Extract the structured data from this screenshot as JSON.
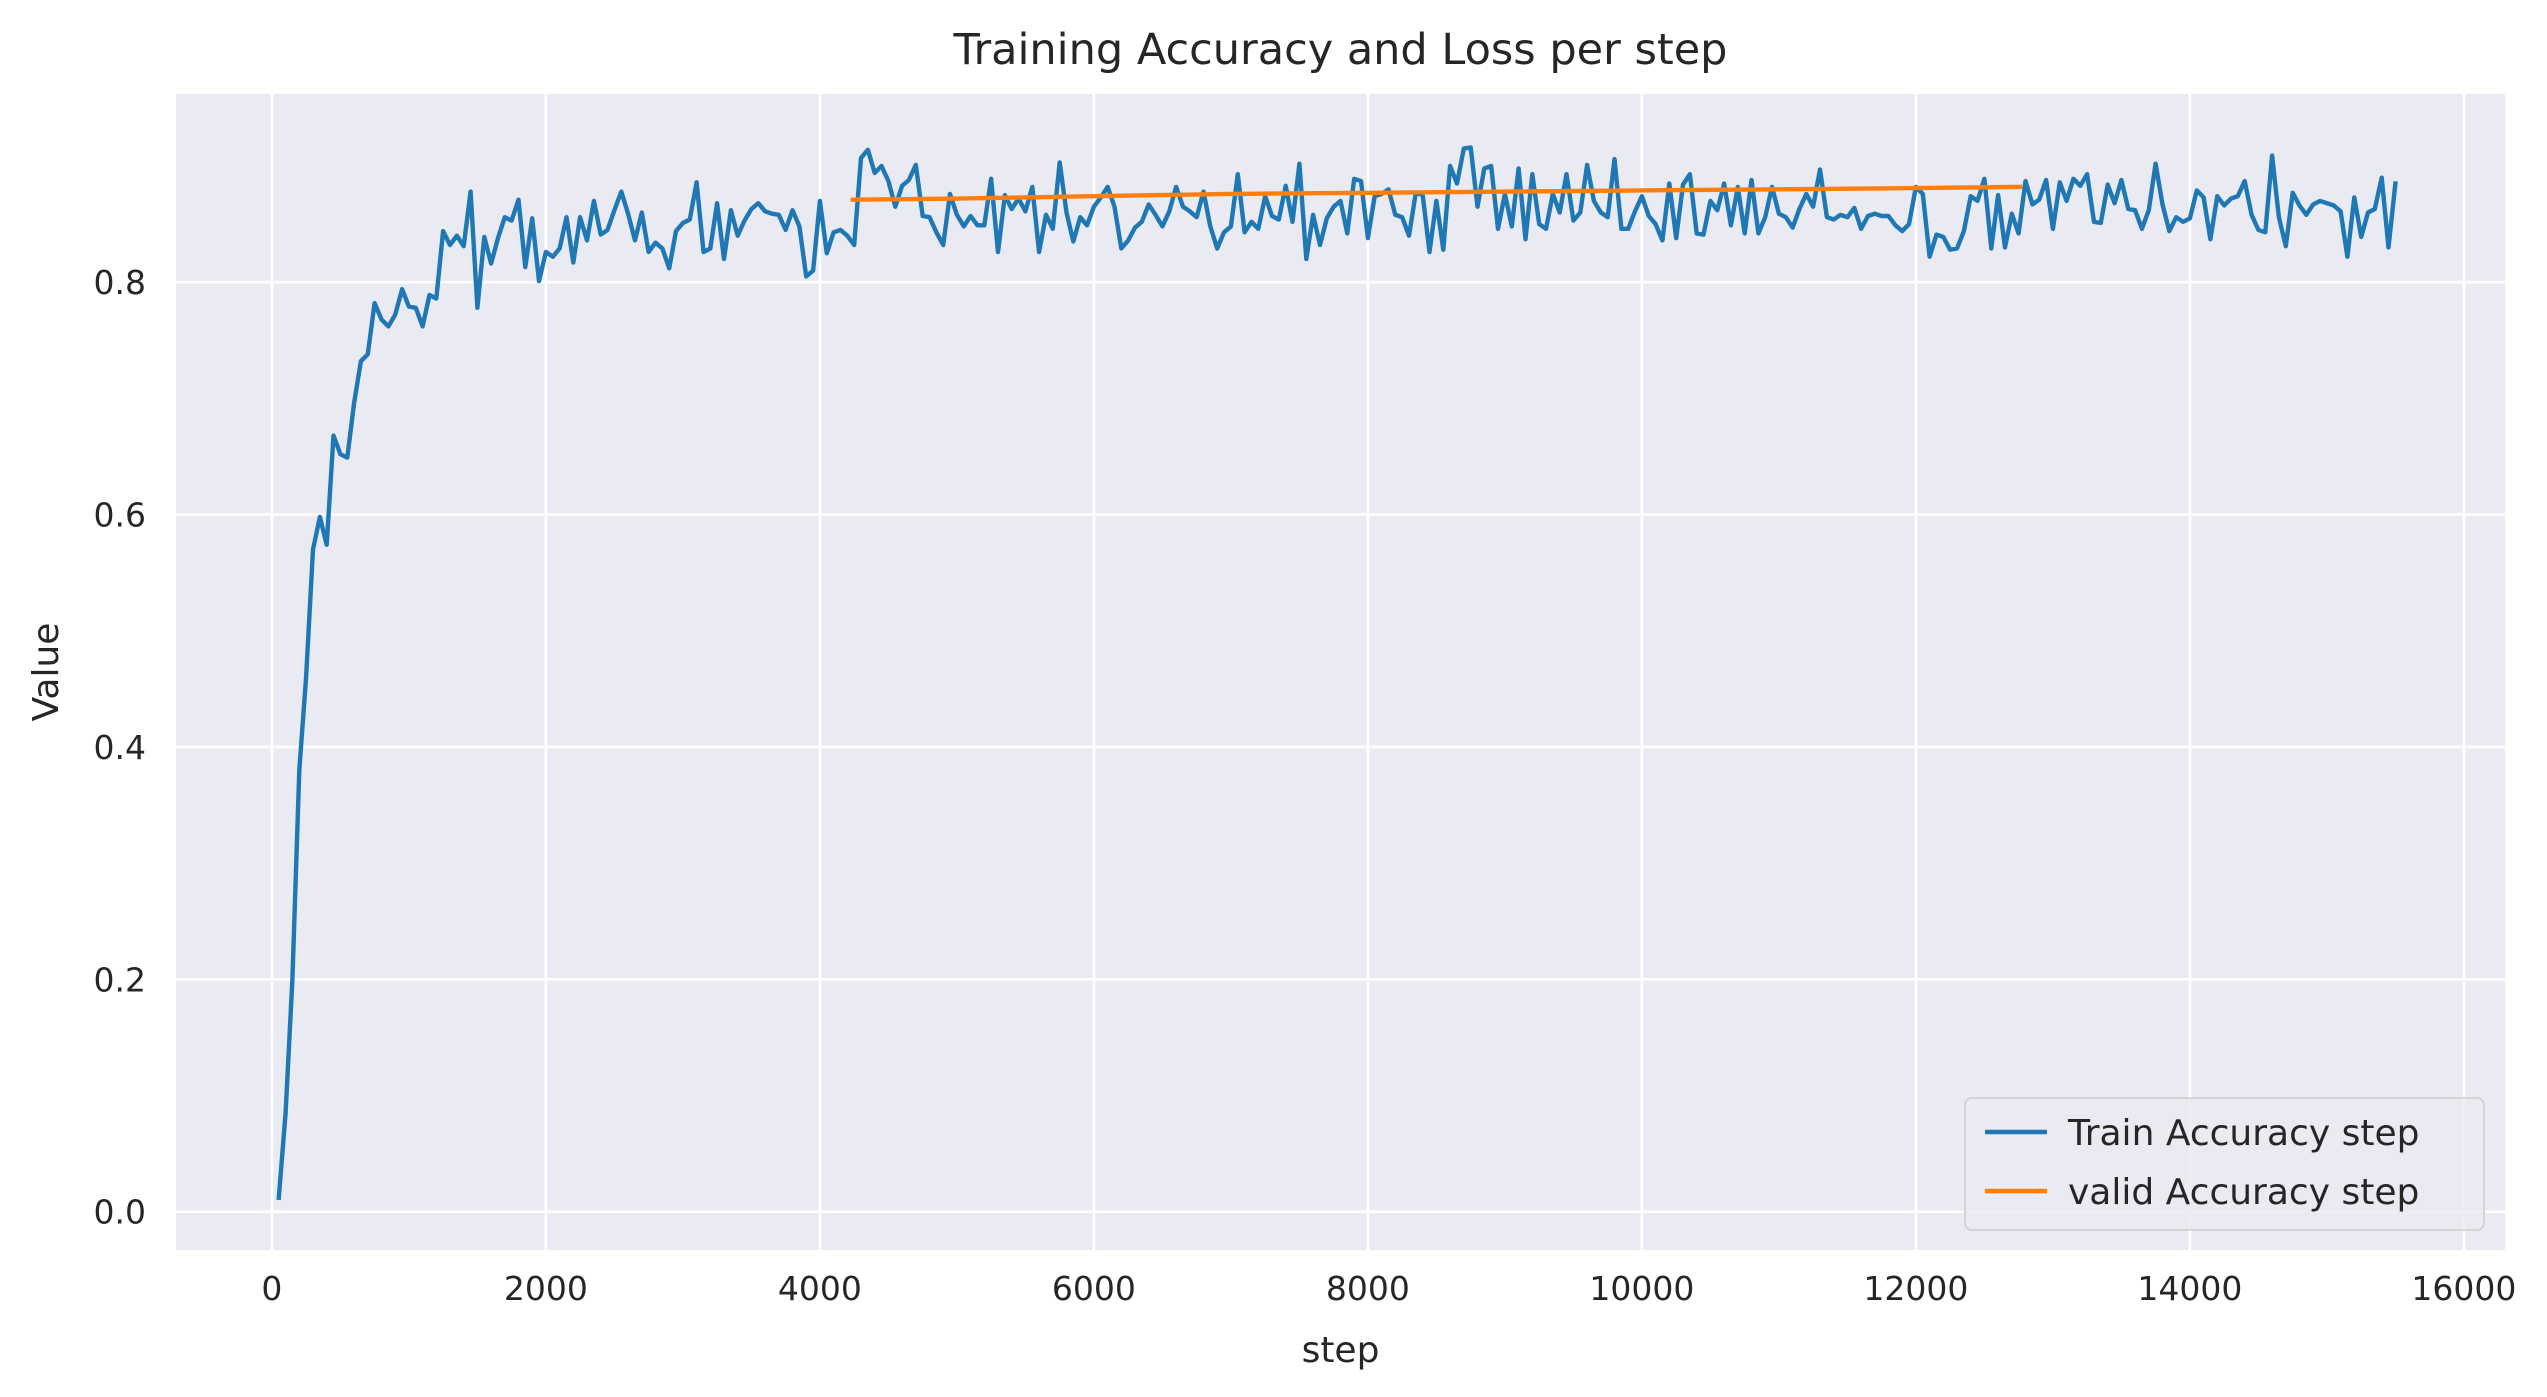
{
  "chart_data": {
    "type": "line",
    "title": "Training Accuracy and Loss per step",
    "xlabel": "step",
    "ylabel": "Value",
    "xlim": [
      -700,
      16300
    ],
    "ylim": [
      -0.033,
      0.962
    ],
    "xticks": [
      0,
      2000,
      4000,
      6000,
      8000,
      10000,
      12000,
      14000,
      16000
    ],
    "yticks": [
      0.0,
      0.2,
      0.4,
      0.6,
      0.8
    ],
    "xtick_labels": [
      "0",
      "2000",
      "4000",
      "6000",
      "8000",
      "10000",
      "12000",
      "14000",
      "16000"
    ],
    "ytick_labels": [
      "0.0",
      "0.2",
      "0.4",
      "0.6",
      "0.8"
    ],
    "grid": true,
    "background": "#eaeaf2",
    "gridColor": "#ffffff",
    "legend_position": "lower-right",
    "series": [
      {
        "name": "Train Accuracy step",
        "color": "#1f77b4",
        "x": [
          50,
          100,
          150,
          200,
          250,
          300,
          350,
          400,
          450,
          500,
          550,
          600,
          650,
          700,
          750,
          800,
          850,
          900,
          950,
          1000,
          1050,
          1100,
          1150,
          1200,
          1250,
          1300,
          1350,
          1400,
          1450,
          1500,
          1550,
          1600,
          1650,
          1700,
          1750,
          1800,
          1850,
          1900,
          1950,
          2000,
          2050,
          2100,
          2150,
          2200,
          2250,
          2300,
          2350,
          2400,
          2450,
          2500,
          2550,
          2600,
          2650,
          2700,
          2750,
          2800,
          2850,
          2900,
          2950,
          3000,
          3050,
          3100,
          3150,
          3200,
          3250,
          3300,
          3350,
          3400,
          3450,
          3500,
          3550,
          3600,
          3650,
          3700,
          3750,
          3800,
          3850,
          3900,
          3950,
          4000,
          4050,
          4100,
          4150,
          4200,
          4250,
          4300,
          4350,
          4400,
          4450,
          4500,
          4550,
          4600,
          4650,
          4700,
          4750,
          4800,
          4850,
          4900,
          4950,
          5000,
          5050,
          5100,
          5150,
          5200,
          5250,
          5300,
          5350,
          5400,
          5450,
          5500,
          5550,
          5600,
          5650,
          5700,
          5750,
          5800,
          5850,
          5900,
          5950,
          6000,
          6050,
          6100,
          6150,
          6200,
          6250,
          6300,
          6350,
          6400,
          6450,
          6500,
          6550,
          6600,
          6650,
          6700,
          6750,
          6800,
          6850,
          6900,
          6950,
          7000,
          7050,
          7100,
          7150,
          7200,
          7250,
          7300,
          7350,
          7400,
          7450,
          7500,
          7550,
          7600,
          7650,
          7700,
          7750,
          7800,
          7850,
          7900,
          7950,
          8000,
          8050,
          8100,
          8150,
          8200,
          8250,
          8300,
          8350,
          8400,
          8450,
          8500,
          8550,
          8600,
          8650,
          8700,
          8750,
          8800,
          8850,
          8900,
          8950,
          9000,
          9050,
          9100,
          9150,
          9200,
          9250,
          9300,
          9350,
          9400,
          9450,
          9500,
          9550,
          9600,
          9650,
          9700,
          9750,
          9800,
          9850,
          9900,
          9950,
          10000,
          10050,
          10100,
          10150,
          10200,
          10250,
          10300,
          10350,
          10400,
          10450,
          10500,
          10550,
          10600,
          10650,
          10700,
          10750,
          10800,
          10850,
          10900,
          10950,
          11000,
          11050,
          11100,
          11150,
          11200,
          11250,
          11300,
          11350,
          11400,
          11450,
          11500,
          11550,
          11600,
          11650,
          11700,
          11750,
          11800,
          11850,
          11900,
          11950,
          12000,
          12050,
          12100,
          12150,
          12200,
          12250,
          12300,
          12350,
          12400,
          12450,
          12500,
          12550,
          12600,
          12650,
          12700,
          12750,
          12800,
          12850,
          12900,
          12950,
          13000,
          13050,
          13100,
          13150,
          13200,
          13250,
          13300,
          13350,
          13400,
          13450,
          13500,
          13550,
          13600,
          13650,
          13700,
          13750,
          13800,
          13850,
          13900,
          13950,
          14000,
          14050,
          14100,
          14150,
          14200,
          14250,
          14300,
          14350,
          14400,
          14450,
          14500,
          14550,
          14600,
          14650,
          14700,
          14750,
          14800,
          14850,
          14900,
          14950,
          15000,
          15050,
          15100,
          15150,
          15200,
          15250,
          15300,
          15350,
          15400,
          15450,
          15500
        ],
        "values": [
          0.012,
          0.085,
          0.2,
          0.38,
          0.46,
          0.57,
          0.598,
          0.574,
          0.668,
          0.652,
          0.649,
          0.696,
          0.732,
          0.738,
          0.782,
          0.768,
          0.762,
          0.772,
          0.794,
          0.779,
          0.778,
          0.762,
          0.789,
          0.786,
          0.844,
          0.832,
          0.84,
          0.831,
          0.878,
          0.778,
          0.839,
          0.816,
          0.838,
          0.856,
          0.853,
          0.871,
          0.813,
          0.855,
          0.801,
          0.826,
          0.822,
          0.829,
          0.856,
          0.817,
          0.856,
          0.836,
          0.87,
          0.841,
          0.845,
          0.862,
          0.878,
          0.859,
          0.836,
          0.86,
          0.826,
          0.834,
          0.829,
          0.812,
          0.844,
          0.851,
          0.854,
          0.886,
          0.826,
          0.829,
          0.868,
          0.82,
          0.862,
          0.84,
          0.853,
          0.863,
          0.868,
          0.861,
          0.859,
          0.858,
          0.845,
          0.862,
          0.848,
          0.805,
          0.81,
          0.87,
          0.825,
          0.843,
          0.845,
          0.84,
          0.832,
          0.907,
          0.914,
          0.894,
          0.9,
          0.887,
          0.865,
          0.883,
          0.888,
          0.901,
          0.857,
          0.856,
          0.843,
          0.832,
          0.876,
          0.858,
          0.848,
          0.857,
          0.849,
          0.849,
          0.889,
          0.826,
          0.875,
          0.863,
          0.872,
          0.861,
          0.882,
          0.826,
          0.858,
          0.846,
          0.903,
          0.86,
          0.835,
          0.856,
          0.849,
          0.865,
          0.873,
          0.882,
          0.865,
          0.829,
          0.836,
          0.847,
          0.852,
          0.867,
          0.858,
          0.848,
          0.861,
          0.882,
          0.865,
          0.861,
          0.856,
          0.878,
          0.848,
          0.829,
          0.843,
          0.848,
          0.893,
          0.843,
          0.852,
          0.846,
          0.874,
          0.857,
          0.854,
          0.883,
          0.852,
          0.902,
          0.82,
          0.858,
          0.832,
          0.855,
          0.865,
          0.87,
          0.842,
          0.889,
          0.887,
          0.838,
          0.874,
          0.876,
          0.88,
          0.858,
          0.856,
          0.84,
          0.877,
          0.875,
          0.826,
          0.87,
          0.828,
          0.9,
          0.885,
          0.915,
          0.916,
          0.865,
          0.898,
          0.9,
          0.846,
          0.876,
          0.848,
          0.898,
          0.837,
          0.893,
          0.85,
          0.846,
          0.876,
          0.86,
          0.893,
          0.853,
          0.86,
          0.901,
          0.87,
          0.86,
          0.856,
          0.906,
          0.846,
          0.846,
          0.861,
          0.874,
          0.857,
          0.85,
          0.836,
          0.885,
          0.838,
          0.884,
          0.893,
          0.842,
          0.841,
          0.87,
          0.862,
          0.885,
          0.849,
          0.882,
          0.842,
          0.888,
          0.842,
          0.856,
          0.882,
          0.859,
          0.856,
          0.847,
          0.863,
          0.876,
          0.865,
          0.897,
          0.856,
          0.854,
          0.858,
          0.856,
          0.864,
          0.846,
          0.857,
          0.859,
          0.857,
          0.857,
          0.849,
          0.844,
          0.85,
          0.882,
          0.876,
          0.822,
          0.841,
          0.839,
          0.828,
          0.829,
          0.844,
          0.874,
          0.87,
          0.889,
          0.829,
          0.875,
          0.83,
          0.859,
          0.842,
          0.887,
          0.867,
          0.871,
          0.888,
          0.846,
          0.886,
          0.87,
          0.889,
          0.883,
          0.893,
          0.852,
          0.851,
          0.884,
          0.868,
          0.888,
          0.863,
          0.862,
          0.846,
          0.862,
          0.902,
          0.867,
          0.844,
          0.856,
          0.852,
          0.855,
          0.879,
          0.873,
          0.837,
          0.874,
          0.866,
          0.872,
          0.874,
          0.887,
          0.858,
          0.845,
          0.843,
          0.909,
          0.856,
          0.831,
          0.877,
          0.866,
          0.858,
          0.867,
          0.87,
          0.868,
          0.866,
          0.861,
          0.822,
          0.873,
          0.839,
          0.86,
          0.863,
          0.89,
          0.83,
          0.885
        ]
      },
      {
        "name": "valid Accuracy step",
        "color": "#ff7f0e",
        "x": [
          4240,
          5000,
          6000,
          7000,
          8000,
          9000,
          10000,
          11000,
          12000,
          12760
        ],
        "values": [
          0.871,
          0.872,
          0.874,
          0.876,
          0.877,
          0.878,
          0.879,
          0.88,
          0.881,
          0.882
        ]
      }
    ]
  }
}
